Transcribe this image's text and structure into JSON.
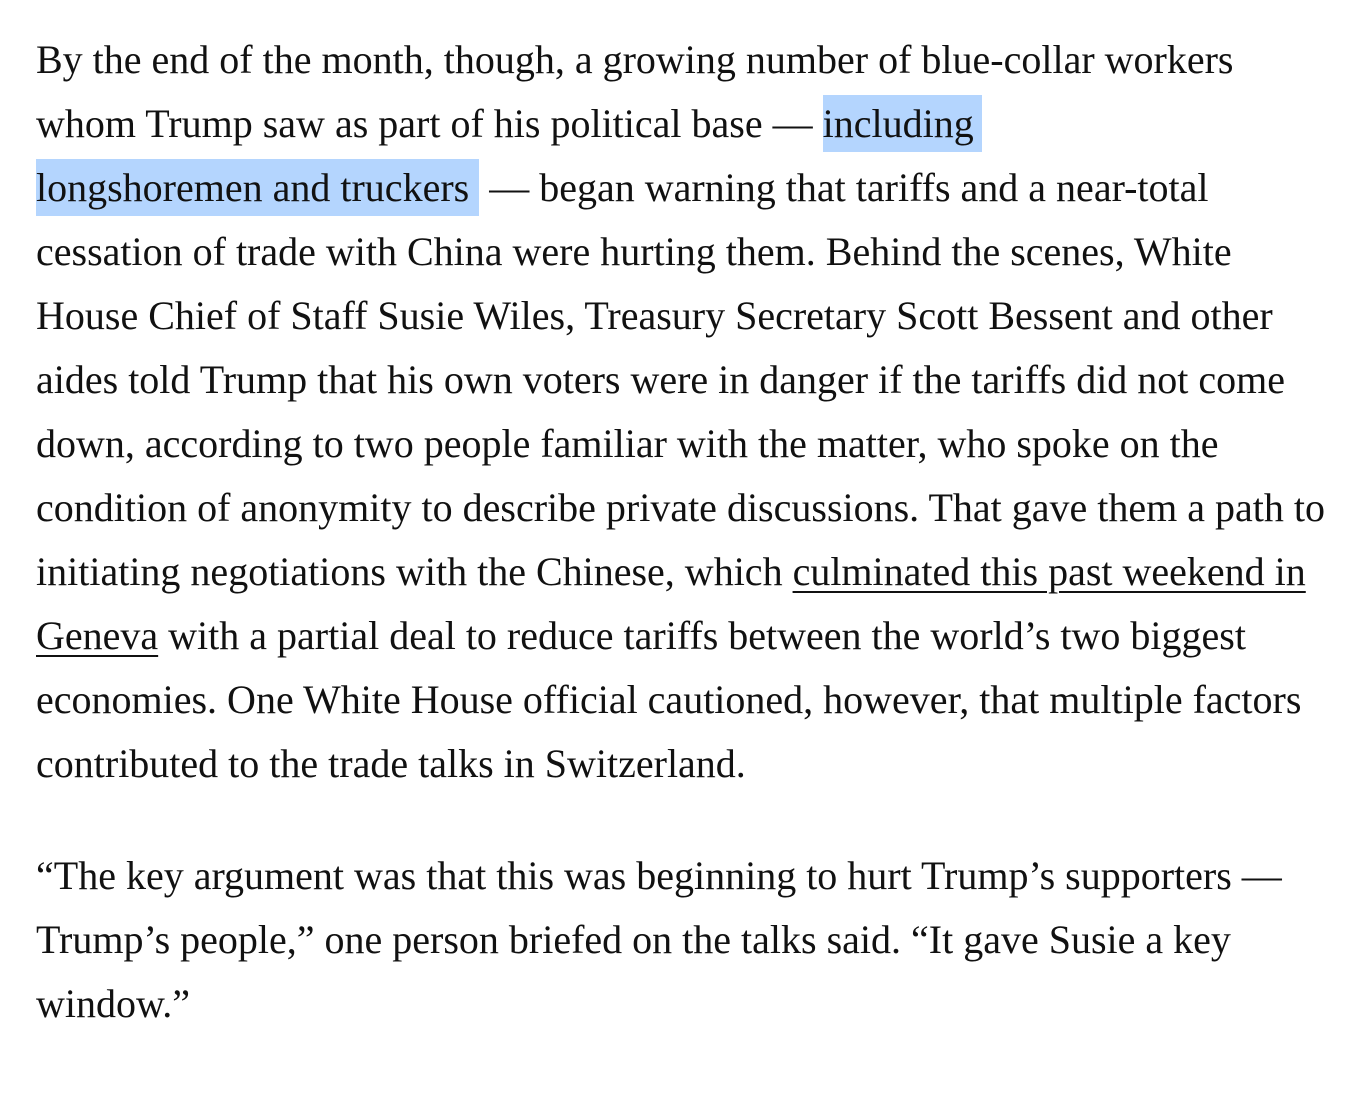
{
  "article": {
    "paragraph1": {
      "seg1": "By the end of the month, though, a growing number of blue-collar workers whom Trump saw as part of his political base — ",
      "highlight_part1": "including",
      "highlight_part2": "longshoremen and truckers",
      "seg2": " — began warning that tariffs and a near-total cessation of trade with China were hurting them. Behind the scenes, White House Chief of Staff Susie Wiles, Treasury Secretary Scott Bessent and other aides told Trump that his own voters were in danger if the tariffs did not come down, according to two people familiar with the matter, who spoke on the condition of anonymity to describe private discussions. That gave them a path to initiating negotiations with the Chinese, which ",
      "link_text": "culminated this past weekend in Geneva",
      "seg3": " with a partial deal to reduce tariffs between the world’s two biggest economies. One White House official cautioned, however, that multiple factors contributed to the trade talks in Switzerland."
    },
    "paragraph2": {
      "text": "“The key argument was that this was beginning to hurt Trump’s supporters — Trump’s people,” one person briefed on the talks said. “It gave Susie a key window.”"
    }
  },
  "colors": {
    "text": "#111111",
    "selection_highlight": "#b4d5fe",
    "background": "#ffffff"
  }
}
